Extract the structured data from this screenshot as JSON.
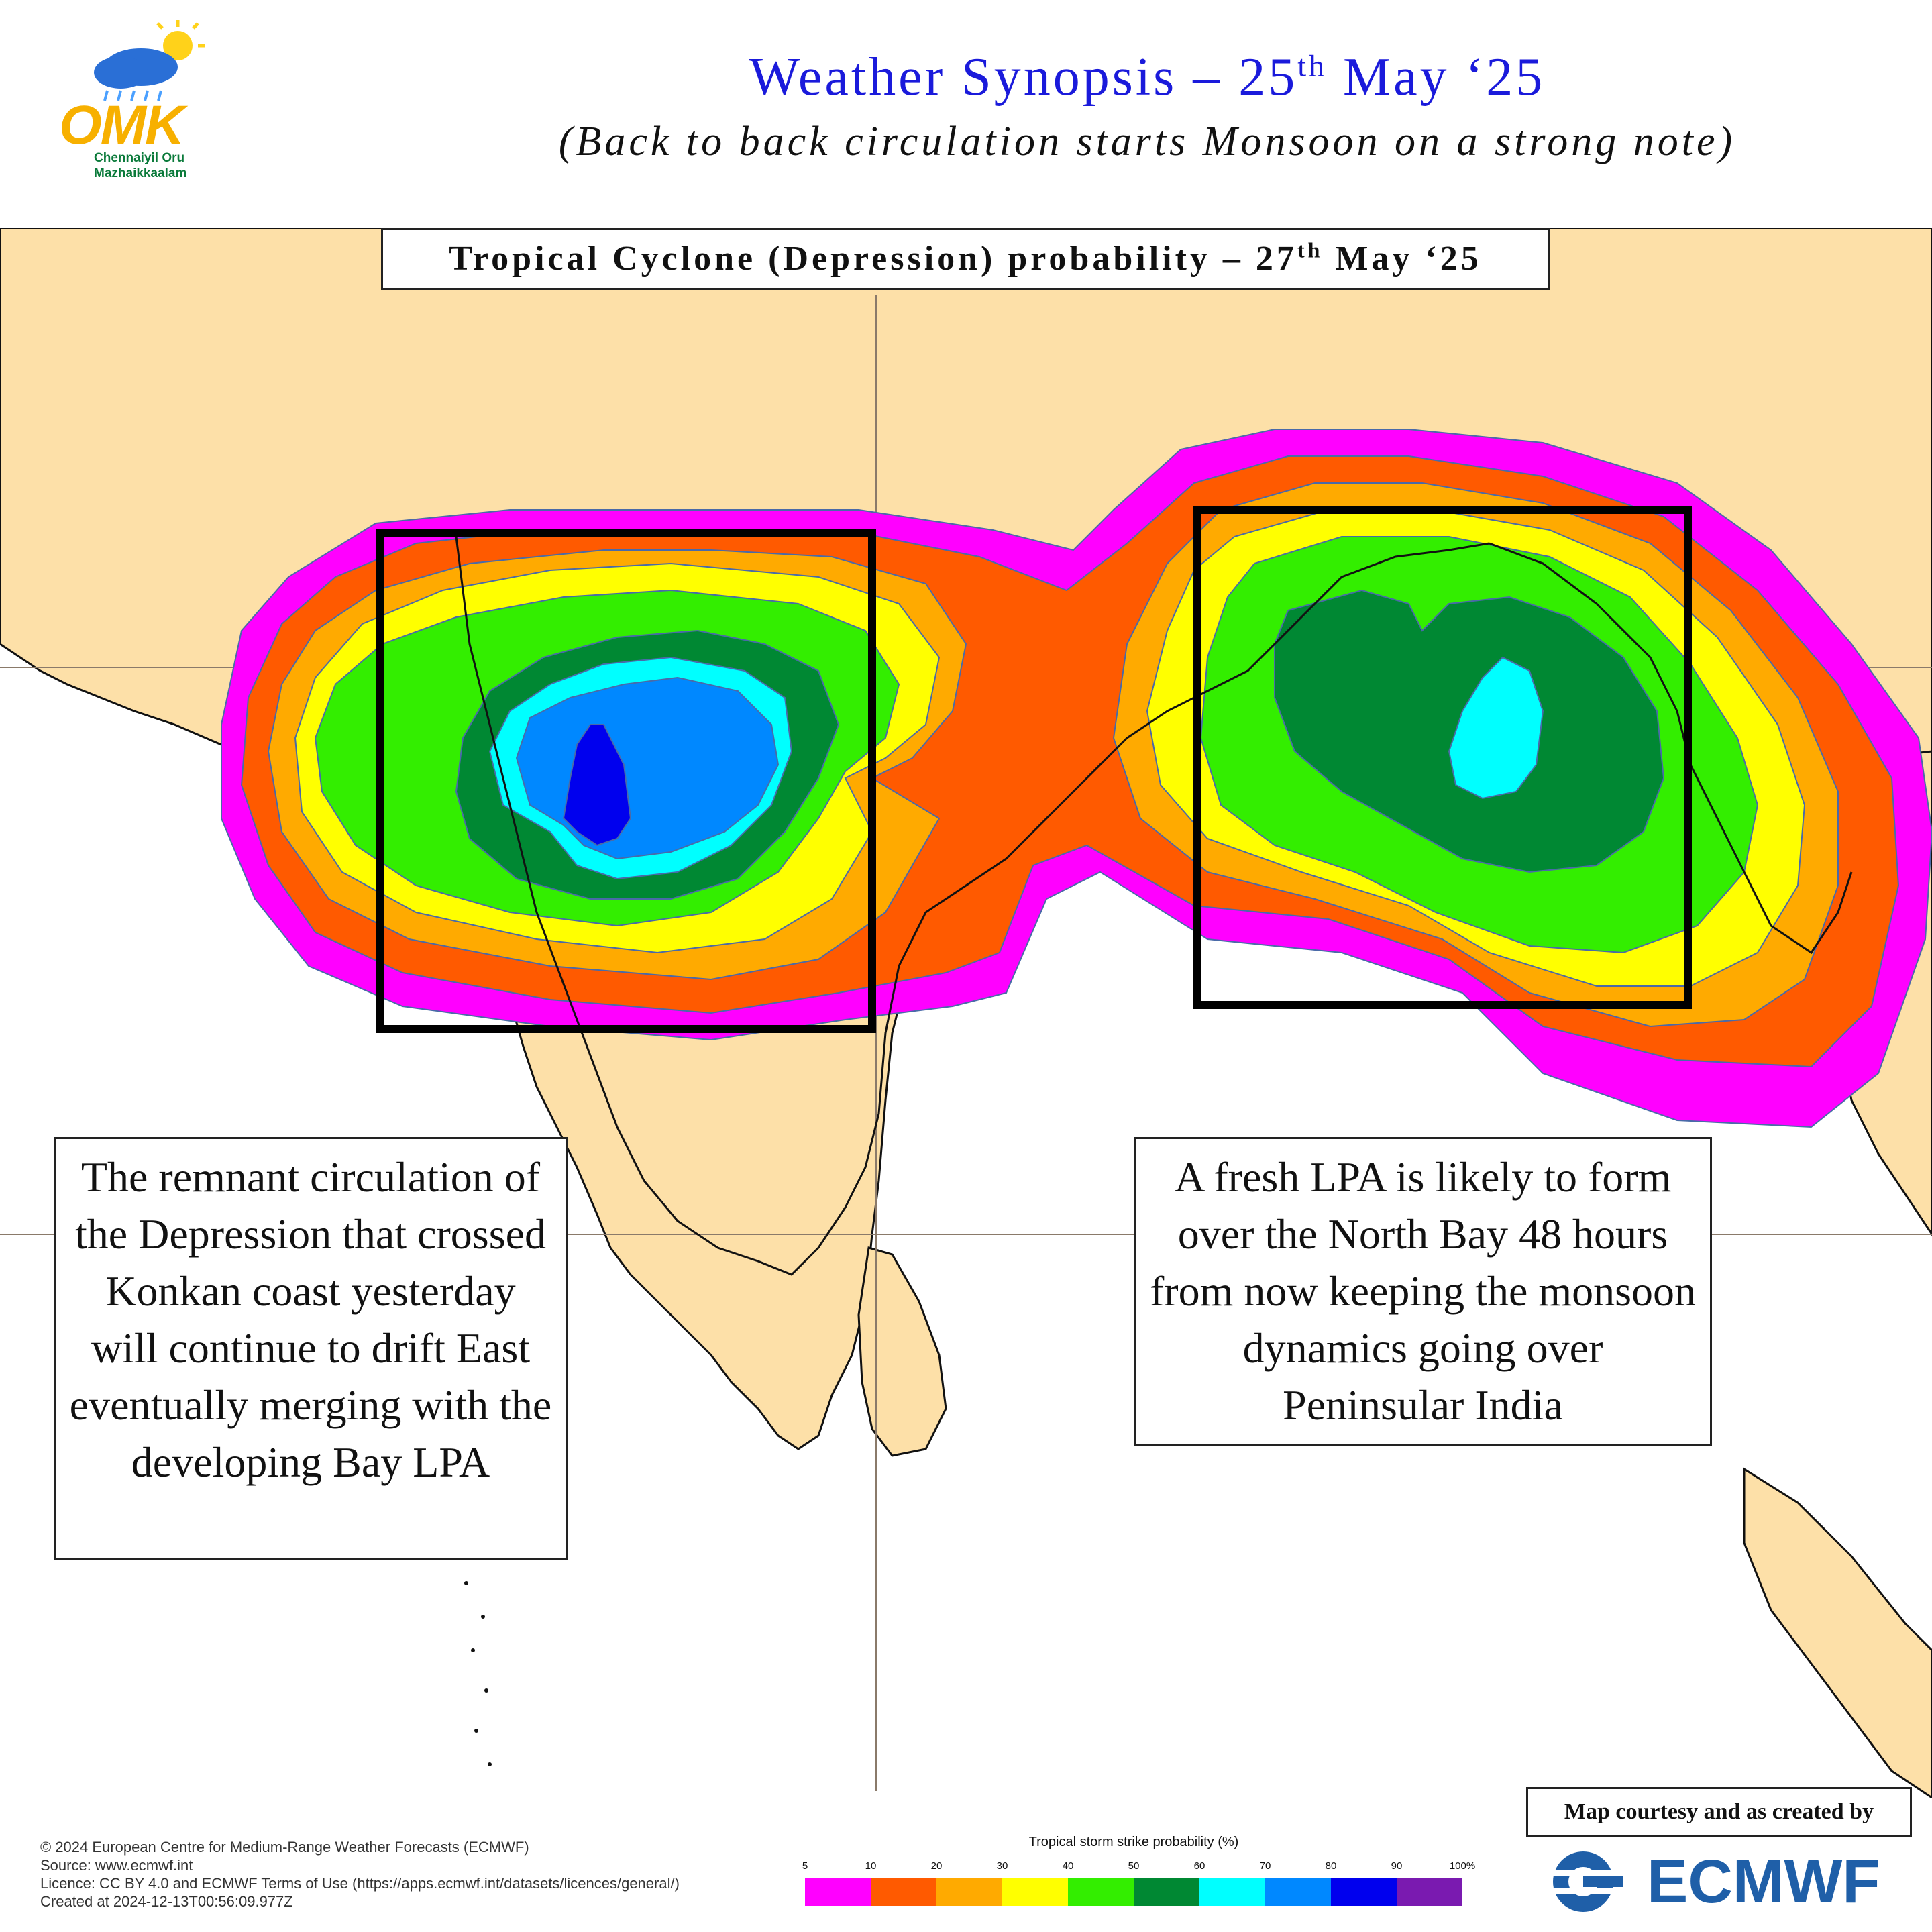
{
  "header": {
    "title_main": "Weather Synopsis – 25",
    "title_sup": "th",
    "title_end": " May ‘25",
    "subtitle": "(Back to back circulation starts Monsoon on a strong note)"
  },
  "logo": {
    "text": "OMK",
    "line1": "Chennaiyil Oru",
    "line2": "Mazhaikkaalam"
  },
  "map": {
    "caption_main": "Tropical Cyclone (Depression) probability – 27",
    "caption_sup": "th",
    "caption_end": " May ‘25",
    "note_left": "The remnant circulation of the Depression that crossed Konkan coast yesterday will continue to drift East eventually merging with the developing Bay LPA",
    "note_right": "A fresh LPA is likely to form over the North Bay 48 hours from now keeping the monsoon dynamics going over Peninsular India"
  },
  "footer": {
    "copyright": "© 2024 European Centre for Medium-Range Weather Forecasts (ECMWF)",
    "source": "Source: www.ecmwf.int",
    "licence": "Licence: CC BY 4.0 and ECMWF Terms of Use (https://apps.ecmwf.int/datasets/licences/general/)",
    "created": "Created at 2024-12-13T00:56:09.977Z"
  },
  "legend": {
    "title": "Tropical storm strike probability (%)",
    "ticks": [
      "5",
      "10",
      "20",
      "30",
      "40",
      "50",
      "60",
      "70",
      "80",
      "90",
      "100%"
    ],
    "colors": [
      "#ff00ff",
      "#ff5a00",
      "#ffaa00",
      "#ffff00",
      "#33ee00",
      "#008833",
      "#00ffff",
      "#0088ff",
      "#0000ee",
      "#7a1ab0"
    ]
  },
  "credit": {
    "label": "Map courtesy and  as created by",
    "brand": "ECMWF"
  },
  "colors": {
    "land": "#fde0a8",
    "title_blue": "#1a1adb",
    "ecmwf_blue": "#1f5fa8"
  }
}
